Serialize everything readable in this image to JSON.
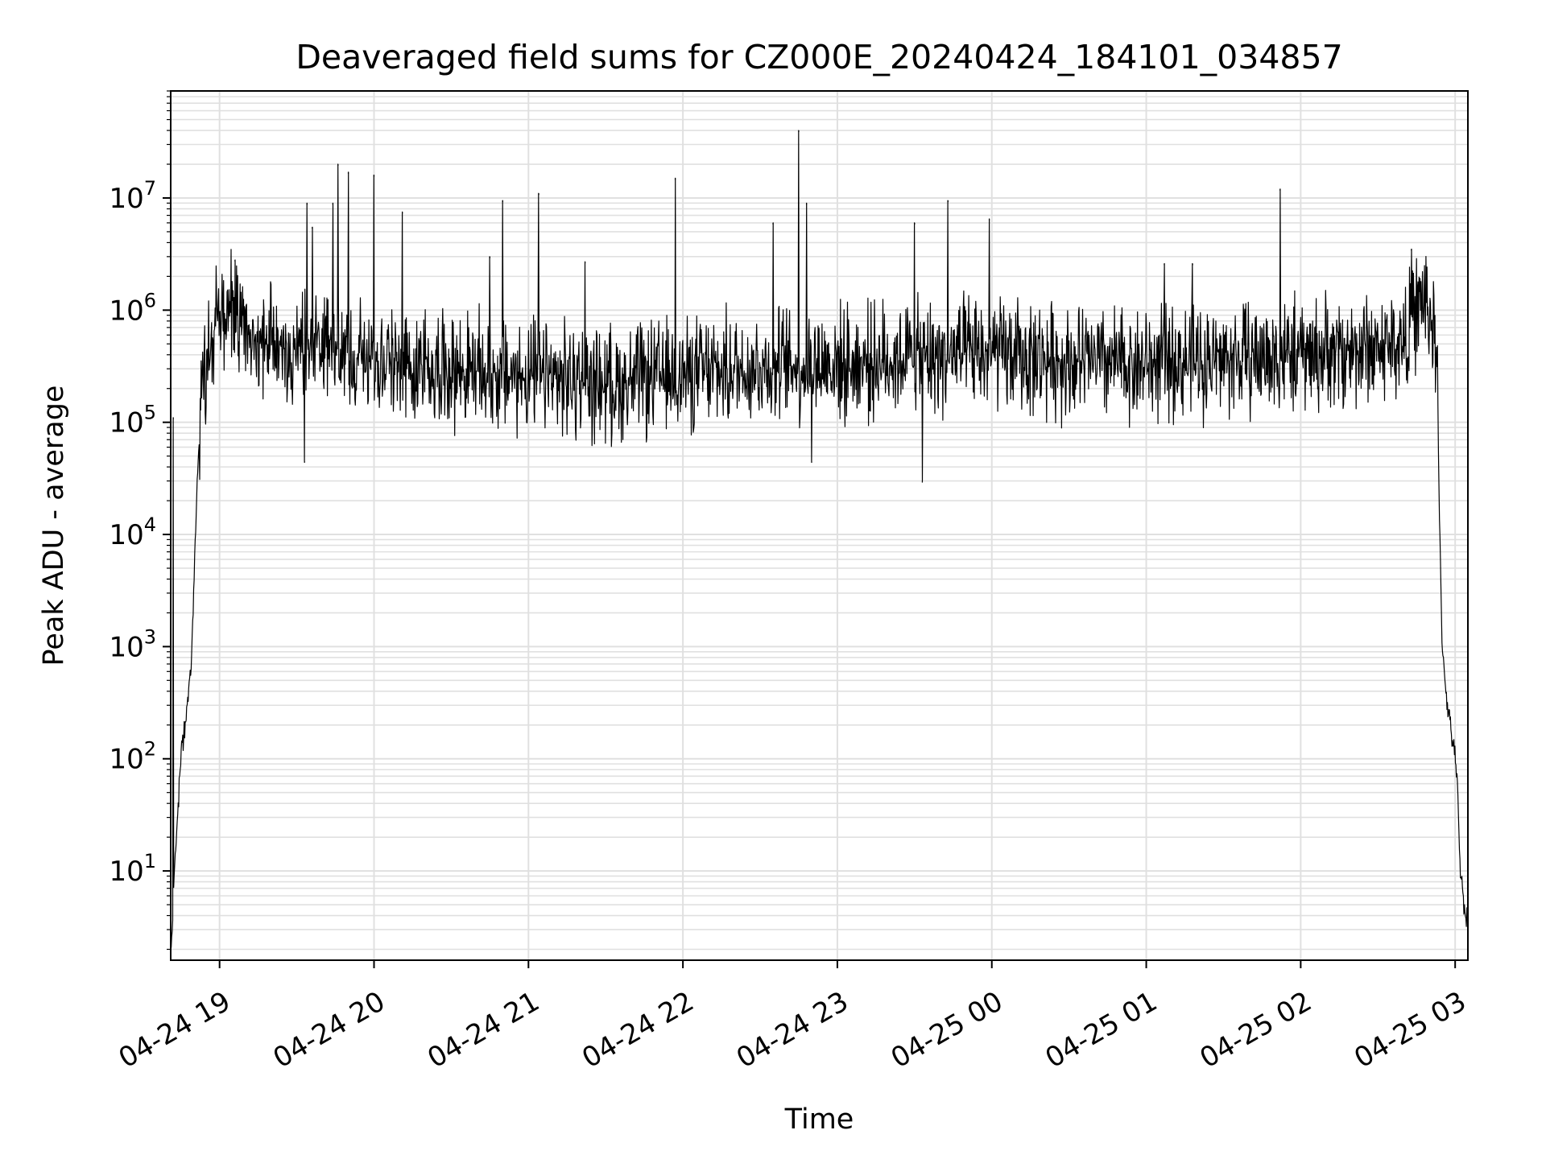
{
  "chart_data": {
    "type": "line",
    "title": "Deaveraged field sums for CZ000E_20240424_184101_034857",
    "xlabel": "Time",
    "ylabel": "Peak ADU - average",
    "yscale": "log",
    "ylim": [
      1.6,
      90000000
    ],
    "xlim": [
      "2024-04-24 18:41:01",
      "2024-04-25 03:04:57"
    ],
    "grid": true,
    "line_color": "#000000",
    "grid_color": "#e0e0e0",
    "x_ticks": [
      {
        "label": "04-24 19",
        "t": "2024-04-24 19:00"
      },
      {
        "label": "04-24 20",
        "t": "2024-04-24 20:00"
      },
      {
        "label": "04-24 21",
        "t": "2024-04-24 21:00"
      },
      {
        "label": "04-24 22",
        "t": "2024-04-24 22:00"
      },
      {
        "label": "04-24 23",
        "t": "2024-04-24 23:00"
      },
      {
        "label": "04-25 00",
        "t": "2024-04-25 00:00"
      },
      {
        "label": "04-25 01",
        "t": "2024-04-25 01:00"
      },
      {
        "label": "04-25 02",
        "t": "2024-04-25 02:00"
      },
      {
        "label": "04-25 03",
        "t": "2024-04-25 03:00"
      }
    ],
    "y_ticks": [
      {
        "base": "10",
        "exp": "1",
        "value": 10
      },
      {
        "base": "10",
        "exp": "2",
        "value": 100
      },
      {
        "base": "10",
        "exp": "3",
        "value": 1000
      },
      {
        "base": "10",
        "exp": "4",
        "value": 10000
      },
      {
        "base": "10",
        "exp": "5",
        "value": 100000
      },
      {
        "base": "10",
        "exp": "6",
        "value": 1000000
      },
      {
        "base": "10",
        "exp": "7",
        "value": 10000000
      }
    ],
    "baseline_envelope": [
      [
        "2024-04-24 18:41",
        2
      ],
      [
        "2024-04-24 18:44",
        40
      ],
      [
        "2024-04-24 18:45",
        100
      ],
      [
        "2024-04-24 18:47",
        250
      ],
      [
        "2024-04-24 18:49",
        700
      ],
      [
        "2024-04-24 18:51",
        20000
      ],
      [
        "2024-04-24 18:53",
        200000
      ],
      [
        "2024-04-24 18:56",
        500000
      ],
      [
        "2024-04-24 19:00",
        900000
      ],
      [
        "2024-04-24 19:05",
        1100000
      ],
      [
        "2024-04-24 19:08",
        700000
      ],
      [
        "2024-04-24 19:15",
        500000
      ],
      [
        "2024-04-24 19:30",
        450000
      ],
      [
        "2024-04-24 20:00",
        380000
      ],
      [
        "2024-04-24 20:30",
        300000
      ],
      [
        "2024-04-24 21:00",
        250000
      ],
      [
        "2024-04-24 21:30",
        220000
      ],
      [
        "2024-04-24 22:00",
        260000
      ],
      [
        "2024-04-24 22:30",
        320000
      ],
      [
        "2024-04-24 23:00",
        330000
      ],
      [
        "2024-04-24 23:30",
        380000
      ],
      [
        "2024-04-25 00:00",
        400000
      ],
      [
        "2024-04-25 00:30",
        350000
      ],
      [
        "2024-04-25 01:00",
        330000
      ],
      [
        "2024-04-25 01:30",
        360000
      ],
      [
        "2024-04-25 02:00",
        400000
      ],
      [
        "2024-04-25 02:40",
        500000
      ],
      [
        "2024-04-25 02:45",
        1000000
      ],
      [
        "2024-04-25 02:48",
        1300000
      ],
      [
        "2024-04-25 02:51",
        800000
      ],
      [
        "2024-04-25 02:53",
        300000
      ],
      [
        "2024-04-25 02:54",
        10000
      ],
      [
        "2024-04-25 02:55",
        1000
      ],
      [
        "2024-04-25 02:57",
        300
      ],
      [
        "2024-04-25 03:00",
        100
      ],
      [
        "2024-04-25 03:01",
        50
      ],
      [
        "2024-04-25 03:02",
        10
      ],
      [
        "2024-04-25 03:04",
        4
      ]
    ],
    "spikes": [
      [
        "2024-04-24 18:42",
        110000
      ],
      [
        "2024-04-24 19:06",
        2800000
      ],
      [
        "2024-04-24 19:34",
        9000000
      ],
      [
        "2024-04-24 19:36",
        5500000
      ],
      [
        "2024-04-24 19:44",
        9000000
      ],
      [
        "2024-04-24 19:46",
        20000000
      ],
      [
        "2024-04-24 19:50",
        17000000
      ],
      [
        "2024-04-24 20:00",
        16000000
      ],
      [
        "2024-04-24 20:11",
        7500000
      ],
      [
        "2024-04-24 20:45",
        3000000
      ],
      [
        "2024-04-24 20:50",
        9500000
      ],
      [
        "2024-04-24 21:04",
        11000000
      ],
      [
        "2024-04-24 21:22",
        2700000
      ],
      [
        "2024-04-24 21:57",
        15000000
      ],
      [
        "2024-04-24 22:35",
        6000000
      ],
      [
        "2024-04-24 22:45",
        40000000
      ],
      [
        "2024-04-24 22:48",
        9000000
      ],
      [
        "2024-04-24 23:30",
        6000000
      ],
      [
        "2024-04-24 23:43",
        9500000
      ],
      [
        "2024-04-24 23:59",
        6500000
      ],
      [
        "2024-04-25 01:07",
        2600000
      ],
      [
        "2024-04-25 01:18",
        2600000
      ],
      [
        "2024-04-25 01:52",
        12000000
      ],
      [
        "2024-04-25 02:43",
        3500000
      ],
      [
        "2024-04-24 23:33",
        30000
      ],
      [
        "2024-04-24 22:50",
        45000
      ],
      [
        "2024-04-24 19:33",
        45000
      ]
    ]
  }
}
